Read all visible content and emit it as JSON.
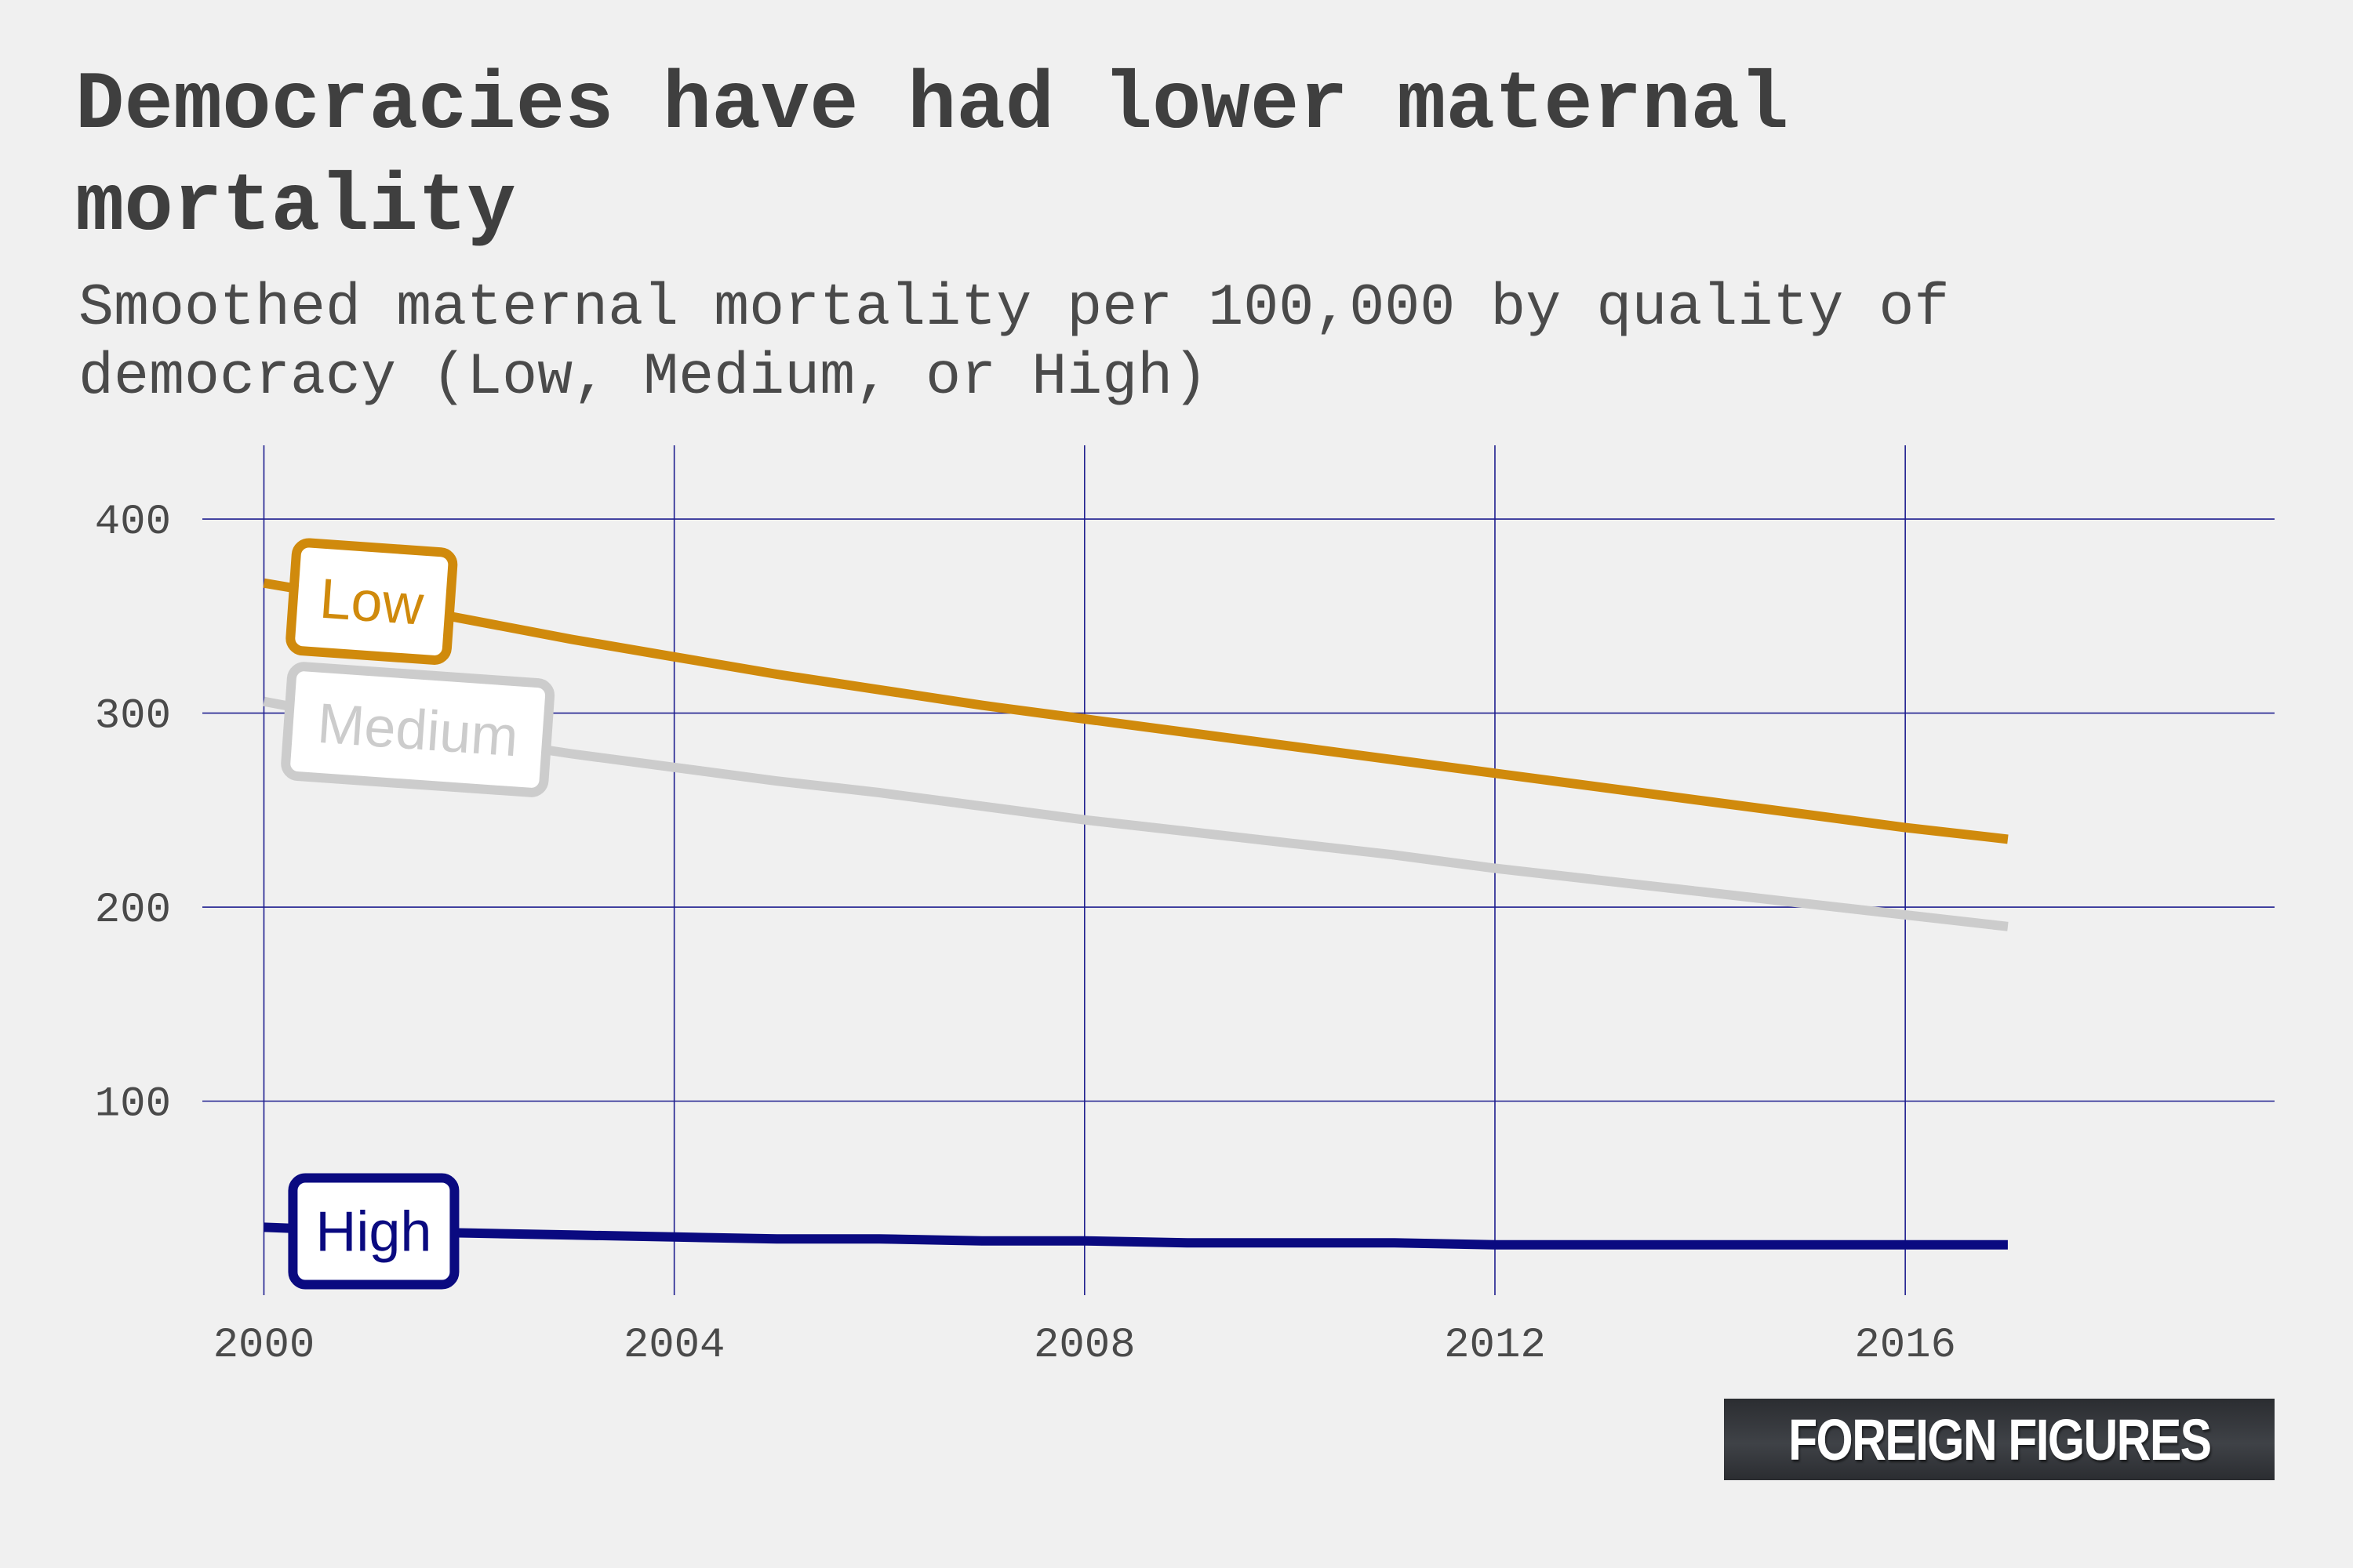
{
  "title": "Democracies have had lower maternal mortality",
  "subtitle": "Smoothed maternal mortality per 100,000 by quality of democracy (Low, Medium, or High)",
  "brand": "FOREIGN FIGURES",
  "colors": {
    "background": "#f0f0f0",
    "grid": "#1f1f8f",
    "low": "#d08a0c",
    "medium": "#cccccc",
    "high": "#0a0a80"
  },
  "chart_data": {
    "type": "line",
    "title": "Democracies have had lower maternal mortality",
    "subtitle": "Smoothed maternal mortality per 100,000 by quality of democracy (Low, Medium, or High)",
    "xlabel": "",
    "ylabel": "",
    "xlim": [
      1999.4,
      2019.6
    ],
    "ylim": [
      0,
      438
    ],
    "x_ticks": [
      2000,
      2004,
      2008,
      2012,
      2016
    ],
    "y_ticks": [
      100,
      200,
      300,
      400
    ],
    "grid": true,
    "legend": "direct labels",
    "x": [
      2000,
      2001,
      2002,
      2003,
      2004,
      2005,
      2006,
      2007,
      2008,
      2009,
      2010,
      2011,
      2012,
      2013,
      2014,
      2015,
      2016,
      2017
    ],
    "series": [
      {
        "name": "Low",
        "color": "#d08a0c",
        "values": [
          367,
          358,
          348,
          338,
          329,
          320,
          312,
          304,
          297,
          290,
          283,
          276,
          269,
          262,
          255,
          248,
          241,
          235
        ]
      },
      {
        "name": "Medium",
        "color": "#cccccc",
        "values": [
          306,
          296,
          287,
          279,
          272,
          265,
          259,
          252,
          245,
          239,
          233,
          227,
          220,
          214,
          208,
          202,
          196,
          190
        ]
      },
      {
        "name": "High",
        "color": "#0a0a80",
        "values": [
          35,
          33,
          32,
          31,
          30,
          29,
          29,
          28,
          28,
          27,
          27,
          27,
          26,
          26,
          26,
          26,
          26,
          26
        ]
      }
    ]
  }
}
